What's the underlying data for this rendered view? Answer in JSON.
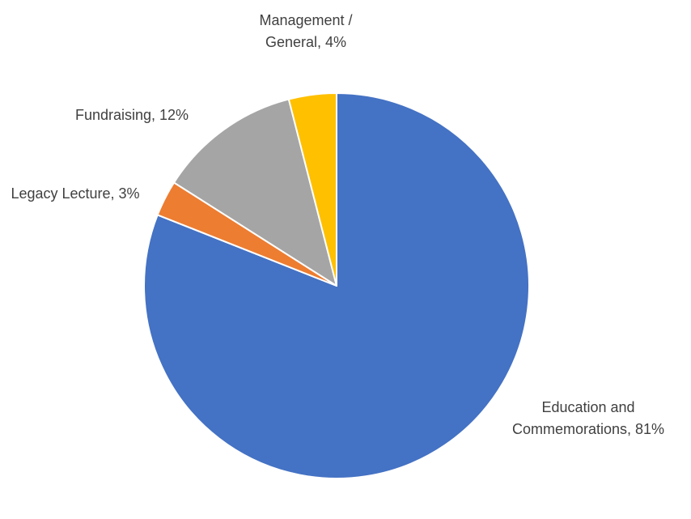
{
  "chart_data": {
    "type": "pie",
    "title": "",
    "slices": [
      {
        "label_lines": [
          "Education and",
          "Commemorations, 81%"
        ],
        "value": 81,
        "color": "#4472C4"
      },
      {
        "label_lines": [
          "Legacy Lecture, 3%"
        ],
        "value": 3,
        "color": "#ED7D31"
      },
      {
        "label_lines": [
          "Fundraising, 12%"
        ],
        "value": 12,
        "color": "#A5A5A5"
      },
      {
        "label_lines": [
          "Management /",
          "General, 4%"
        ],
        "value": 4,
        "color": "#FFC000"
      }
    ]
  }
}
